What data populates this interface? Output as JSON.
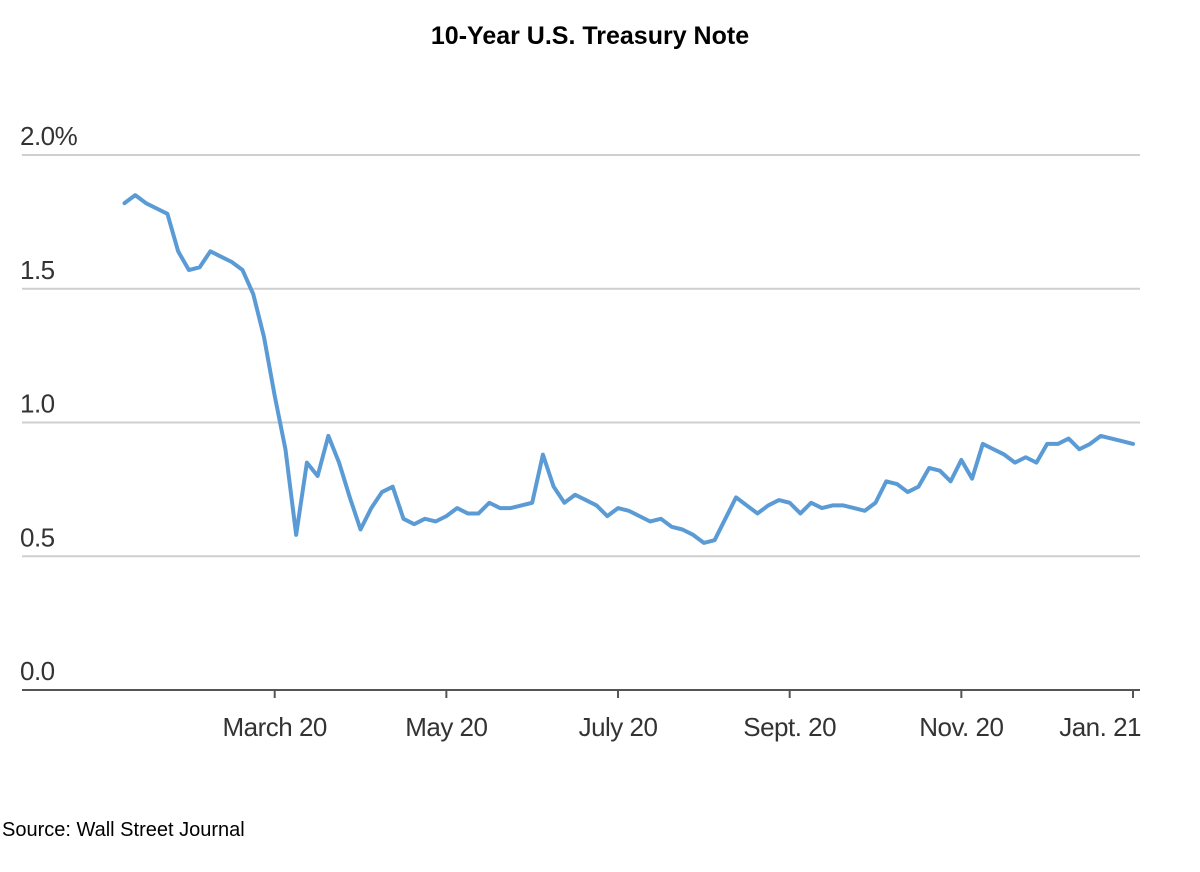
{
  "chart_data": {
    "type": "line",
    "title": "10-Year U.S. Treasury Note",
    "source": "Source: Wall Street Journal",
    "color": "#5b9bd5",
    "grid": true,
    "ylim": [
      0,
      2.0
    ],
    "yticks": [
      {
        "value": 0,
        "label": "0.0"
      },
      0.5,
      {
        "value": 1,
        "label": "1.0"
      },
      1.5,
      {
        "value": 2,
        "label": "2.0%"
      }
    ],
    "categories": [
      null,
      null,
      null,
      null,
      null,
      null,
      null,
      null,
      null,
      null,
      null,
      null,
      null,
      null,
      "March 20",
      null,
      null,
      null,
      null,
      null,
      null,
      null,
      null,
      null,
      null,
      null,
      null,
      null,
      null,
      null,
      "May 20",
      null,
      null,
      null,
      null,
      null,
      null,
      null,
      null,
      null,
      null,
      null,
      null,
      null,
      null,
      null,
      "July 20",
      null,
      null,
      null,
      null,
      null,
      null,
      null,
      null,
      null,
      null,
      null,
      null,
      null,
      null,
      null,
      "Sept. 20",
      null,
      null,
      null,
      null,
      null,
      null,
      null,
      null,
      null,
      null,
      null,
      null,
      null,
      null,
      null,
      "Nov. 20",
      null,
      null,
      null,
      null,
      null,
      null,
      null,
      null,
      null,
      null,
      null,
      null,
      null,
      null,
      null,
      "Jan. 21"
    ],
    "values": [
      1.82,
      1.85,
      1.82,
      1.8,
      1.78,
      1.64,
      1.57,
      1.58,
      1.64,
      1.62,
      1.6,
      1.57,
      1.48,
      1.32,
      1.1,
      0.9,
      0.58,
      0.85,
      0.8,
      0.95,
      0.85,
      0.72,
      0.6,
      0.68,
      0.74,
      0.76,
      0.64,
      0.62,
      0.64,
      0.63,
      0.65,
      0.68,
      0.66,
      0.66,
      0.7,
      0.68,
      0.68,
      0.69,
      0.7,
      0.88,
      0.76,
      0.7,
      0.73,
      0.71,
      0.69,
      0.65,
      0.68,
      0.67,
      0.65,
      0.63,
      0.64,
      0.61,
      0.6,
      0.58,
      0.55,
      0.56,
      0.64,
      0.72,
      0.69,
      0.66,
      0.69,
      0.71,
      0.7,
      0.66,
      0.7,
      0.68,
      0.69,
      0.69,
      0.68,
      0.67,
      0.7,
      0.78,
      0.77,
      0.74,
      0.76,
      0.83,
      0.82,
      0.78,
      0.86,
      0.79,
      0.92,
      0.9,
      0.88,
      0.85,
      0.87,
      0.85,
      0.92,
      0.92,
      0.94,
      0.9,
      0.92,
      0.95,
      0.94,
      0.93,
      0.92
    ]
  }
}
